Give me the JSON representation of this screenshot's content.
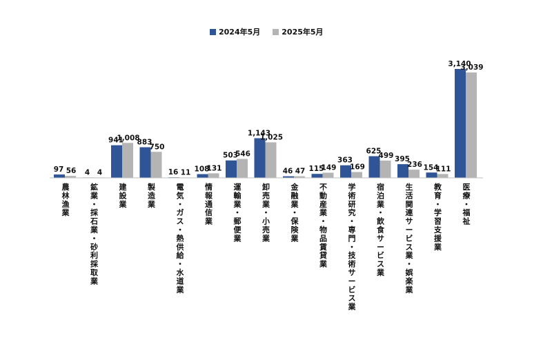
{
  "chart_data": {
    "type": "bar",
    "categories": [
      "農林漁業",
      "鉱業・採石業・砂利採取業",
      "建設業",
      "製造業",
      "電気・ガス・熱供給・水道業",
      "情報通信業",
      "運輸業・郵便業",
      "卸売業・小売業",
      "金融業・保険業",
      "不動産業・物品賃貸業",
      "学術研究・専門・技術サービス業",
      "宿泊業・飲食サービス業",
      "生活関連サービス業・娯楽業",
      "教育・学習支援業",
      "医療・福祉"
    ],
    "series": [
      {
        "name": "2024年5月",
        "color": "#2f5597",
        "values": [
          97,
          4,
          941,
          883,
          16,
          108,
          503,
          1143,
          46,
          115,
          363,
          625,
          395,
          154,
          3140
        ],
        "labels": [
          "97",
          "4",
          "941",
          "883",
          "16",
          "108",
          "503",
          "1,143",
          "46",
          "115",
          "363",
          "625",
          "395",
          "154",
          "3,140"
        ]
      },
      {
        "name": "2025年5月",
        "color": "#b4b4b4",
        "values": [
          56,
          4,
          1008,
          750,
          11,
          131,
          546,
          1025,
          47,
          149,
          169,
          499,
          236,
          111,
          3039
        ],
        "labels": [
          "56",
          "4",
          "1,008",
          "750",
          "11",
          "131",
          "546",
          "1,025",
          "47",
          "149",
          "169",
          "499",
          "236",
          "111",
          "3,039"
        ]
      }
    ],
    "ylim": [
      0,
      3140
    ],
    "grid": false,
    "legend_position": "top-center"
  }
}
